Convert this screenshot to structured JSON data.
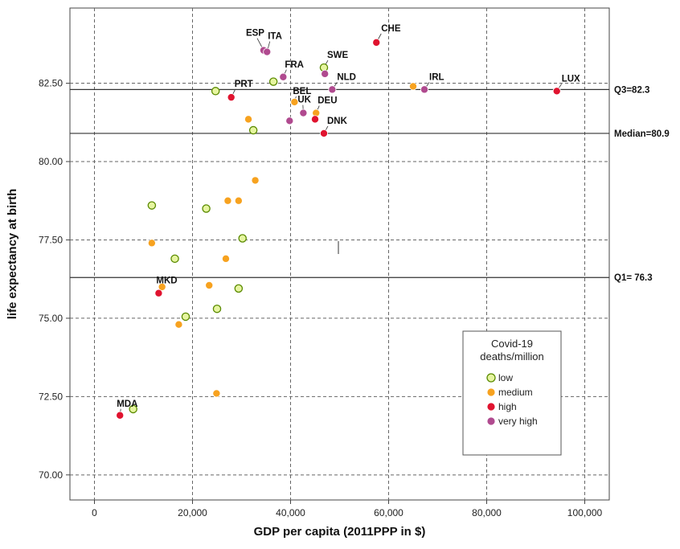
{
  "chart_data": {
    "type": "scatter",
    "xlabel": "GDP per capita (2011PPP in $)",
    "ylabel": "life expectancy at birth",
    "xlim": [
      -5000,
      105000
    ],
    "ylim": [
      69.2,
      84.9
    ],
    "x_ticks": [
      0,
      20000,
      40000,
      60000,
      80000,
      100000
    ],
    "x_tick_labels": [
      "0",
      "20,000",
      "40,000",
      "60,000",
      "80,000",
      "100,000"
    ],
    "y_ticks": [
      70,
      72.5,
      75,
      77.5,
      80,
      82.5
    ],
    "y_tick_labels": [
      "70.00",
      "72.50",
      "75.00",
      "77.50",
      "80.00",
      "82.50"
    ],
    "grid": true,
    "reference_lines": [
      {
        "y": 82.3,
        "label": "Q3=82.3"
      },
      {
        "y": 80.9,
        "label": "Median=80.9"
      },
      {
        "y": 76.3,
        "label": "Q1= 76.3"
      }
    ],
    "legend": {
      "title_lines": [
        "Covid-19",
        "deaths/million"
      ],
      "placement": "bottom-right",
      "entries": [
        {
          "key": "low",
          "label": "low"
        },
        {
          "key": "medium",
          "label": "medium"
        },
        {
          "key": "high",
          "label": "high"
        },
        {
          "key": "very_high",
          "label": "very high"
        }
      ]
    },
    "category_colors": {
      "low": "#e6f5a0",
      "medium": "#f7a21f",
      "high": "#e0132f",
      "very_high": "#b04a8f"
    },
    "points": [
      {
        "x": 34500,
        "y": 83.55,
        "category": "very_high",
        "label": "ESP"
      },
      {
        "x": 35200,
        "y": 83.5,
        "category": "very_high",
        "label": "ITA"
      },
      {
        "x": 57500,
        "y": 83.8,
        "category": "high",
        "label": "CHE"
      },
      {
        "x": 46800,
        "y": 83.0,
        "category": "low",
        "label": "SWE"
      },
      {
        "x": 47000,
        "y": 82.8,
        "category": "very_high"
      },
      {
        "x": 38500,
        "y": 82.7,
        "category": "very_high",
        "label": "FRA"
      },
      {
        "x": 36500,
        "y": 82.55,
        "category": "low"
      },
      {
        "x": 48500,
        "y": 82.3,
        "category": "very_high",
        "label": "NLD"
      },
      {
        "x": 65000,
        "y": 82.4,
        "category": "medium"
      },
      {
        "x": 67300,
        "y": 82.3,
        "category": "very_high",
        "label": "IRL"
      },
      {
        "x": 94300,
        "y": 82.25,
        "category": "high",
        "label": "LUX"
      },
      {
        "x": 24700,
        "y": 82.25,
        "category": "low"
      },
      {
        "x": 27900,
        "y": 82.05,
        "category": "high",
        "label": "PRT"
      },
      {
        "x": 40800,
        "y": 81.9,
        "category": "medium",
        "label": "BEL"
      },
      {
        "x": 45200,
        "y": 81.55,
        "category": "medium",
        "label": "DEU"
      },
      {
        "x": 42600,
        "y": 81.55,
        "category": "very_high",
        "label": "UK"
      },
      {
        "x": 39800,
        "y": 81.3,
        "category": "very_high"
      },
      {
        "x": 45000,
        "y": 81.35,
        "category": "high"
      },
      {
        "x": 31400,
        "y": 81.35,
        "category": "medium"
      },
      {
        "x": 32400,
        "y": 81.0,
        "category": "low"
      },
      {
        "x": 46800,
        "y": 80.9,
        "category": "high",
        "label": "DNK"
      },
      {
        "x": 32800,
        "y": 79.4,
        "category": "medium"
      },
      {
        "x": 27200,
        "y": 78.75,
        "category": "medium"
      },
      {
        "x": 29400,
        "y": 78.75,
        "category": "medium"
      },
      {
        "x": 11700,
        "y": 78.6,
        "category": "low"
      },
      {
        "x": 22800,
        "y": 78.5,
        "category": "low"
      },
      {
        "x": 30200,
        "y": 77.55,
        "category": "low"
      },
      {
        "x": 11700,
        "y": 77.4,
        "category": "medium"
      },
      {
        "x": 16400,
        "y": 76.9,
        "category": "low"
      },
      {
        "x": 26800,
        "y": 76.9,
        "category": "medium"
      },
      {
        "x": 13800,
        "y": 76.0,
        "category": "medium"
      },
      {
        "x": 23400,
        "y": 76.05,
        "category": "medium"
      },
      {
        "x": 29400,
        "y": 75.95,
        "category": "low"
      },
      {
        "x": 13100,
        "y": 75.8,
        "category": "high",
        "label": "MKD"
      },
      {
        "x": 25000,
        "y": 75.3,
        "category": "low"
      },
      {
        "x": 18600,
        "y": 75.05,
        "category": "low"
      },
      {
        "x": 17200,
        "y": 74.8,
        "category": "medium"
      },
      {
        "x": 24900,
        "y": 72.6,
        "category": "medium"
      },
      {
        "x": 7900,
        "y": 72.1,
        "category": "low"
      },
      {
        "x": 5200,
        "y": 71.9,
        "category": "high",
        "label": "MDA"
      }
    ]
  }
}
